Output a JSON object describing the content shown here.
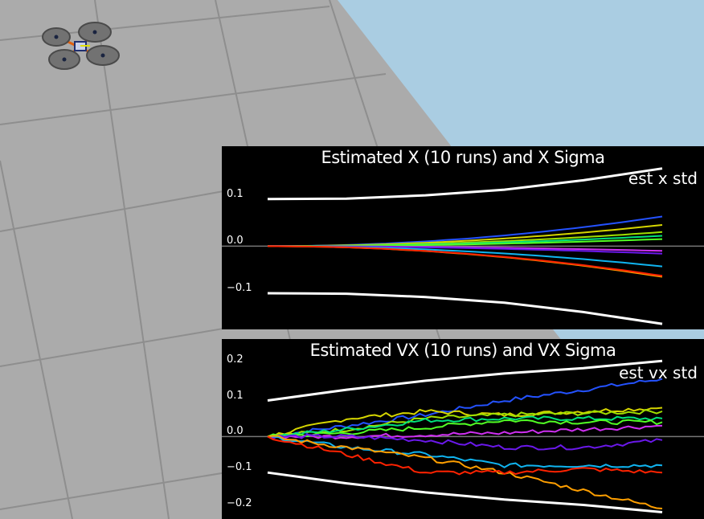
{
  "colors": {
    "sky": "#aacde2",
    "floor": "#ababab",
    "floor_grid": "#8e8e8e",
    "sigma": "#ffffff",
    "zero_line": "#777777",
    "run_colors": [
      "#2452ff",
      "#d5d500",
      "#9fdf00",
      "#00e27a",
      "#52ff24",
      "#cf2ff2",
      "#6a18ea",
      "#10b4f0",
      "#ff9f00",
      "#ff2200"
    ]
  },
  "drone": {
    "icon": "quadcopter-icon"
  },
  "chart_data": [
    {
      "type": "line",
      "title": "Estimated X (10 runs) and X Sigma",
      "legend": [
        "est x std"
      ],
      "legend_position": "top-right",
      "xlim": [
        0,
        1
      ],
      "ylim": [
        -0.17,
        0.185
      ],
      "ticks": [
        {
          "value": 0.1,
          "label": "0.1"
        },
        {
          "value": 0.0,
          "label": "0.0"
        },
        {
          "value": -0.1,
          "label": "−0.1"
        }
      ],
      "sigma_upper": [
        [
          0,
          0.1
        ],
        [
          0.2,
          0.101
        ],
        [
          0.4,
          0.108
        ],
        [
          0.6,
          0.12
        ],
        [
          0.8,
          0.14
        ],
        [
          1.0,
          0.165
        ]
      ],
      "sigma_lower": [
        [
          0,
          -0.1
        ],
        [
          0.2,
          -0.101
        ],
        [
          0.4,
          -0.108
        ],
        [
          0.6,
          -0.12
        ],
        [
          0.8,
          -0.14
        ],
        [
          1.0,
          -0.165
        ]
      ],
      "runs_end": [
        0.063,
        0.045,
        0.03,
        0.022,
        0.015,
        -0.01,
        -0.016,
        -0.043,
        -0.065,
        -0.063
      ]
    },
    {
      "type": "line",
      "title": "Estimated VX (10 runs) and VX Sigma",
      "legend": [
        "est vx std"
      ],
      "legend_position": "top-right",
      "xlim": [
        0,
        1
      ],
      "ylim": [
        -0.22,
        0.235
      ],
      "ticks": [
        {
          "value": 0.2,
          "label": "0.2"
        },
        {
          "value": 0.1,
          "label": "0.1"
        },
        {
          "value": 0.0,
          "label": "0.0"
        },
        {
          "value": -0.1,
          "label": "−0.1"
        },
        {
          "value": -0.2,
          "label": "−0.2"
        }
      ],
      "sigma_upper": [
        [
          0,
          0.1
        ],
        [
          0.2,
          0.13
        ],
        [
          0.4,
          0.155
        ],
        [
          0.6,
          0.175
        ],
        [
          0.8,
          0.19
        ],
        [
          1.0,
          0.21
        ]
      ],
      "sigma_lower": [
        [
          0,
          -0.1
        ],
        [
          0.2,
          -0.13
        ],
        [
          0.4,
          -0.155
        ],
        [
          0.6,
          -0.175
        ],
        [
          0.8,
          -0.19
        ],
        [
          1.0,
          -0.21
        ]
      ],
      "runs": [
        [
          [
            0,
            0
          ],
          [
            0.2,
            0.03
          ],
          [
            0.4,
            0.06
          ],
          [
            0.6,
            0.1
          ],
          [
            0.8,
            0.13
          ],
          [
            1.0,
            0.16
          ]
        ],
        [
          [
            0,
            0
          ],
          [
            0.2,
            0.05
          ],
          [
            0.4,
            0.07
          ],
          [
            0.6,
            0.06
          ],
          [
            0.8,
            0.07
          ],
          [
            1.0,
            0.08
          ]
        ],
        [
          [
            0,
            0
          ],
          [
            0.2,
            0.02
          ],
          [
            0.4,
            0.05
          ],
          [
            0.6,
            0.06
          ],
          [
            0.8,
            0.065
          ],
          [
            1.0,
            0.07
          ]
        ],
        [
          [
            0,
            0
          ],
          [
            0.2,
            0.02
          ],
          [
            0.4,
            0.045
          ],
          [
            0.6,
            0.05
          ],
          [
            0.8,
            0.05
          ],
          [
            1.0,
            0.05
          ]
        ],
        [
          [
            0,
            0
          ],
          [
            0.2,
            0.01
          ],
          [
            0.4,
            0.025
          ],
          [
            0.6,
            0.045
          ],
          [
            0.8,
            0.04
          ],
          [
            1.0,
            0.04
          ]
        ],
        [
          [
            0,
            0
          ],
          [
            0.2,
            0.0
          ],
          [
            0.4,
            0.005
          ],
          [
            0.6,
            0.01
          ],
          [
            0.8,
            0.02
          ],
          [
            1.0,
            0.03
          ]
        ],
        [
          [
            0,
            0
          ],
          [
            0.2,
            0.0
          ],
          [
            0.4,
            -0.01
          ],
          [
            0.6,
            -0.03
          ],
          [
            0.8,
            -0.03
          ],
          [
            1.0,
            -0.01
          ]
        ],
        [
          [
            0,
            0
          ],
          [
            0.2,
            -0.03
          ],
          [
            0.4,
            -0.05
          ],
          [
            0.6,
            -0.08
          ],
          [
            0.8,
            -0.08
          ],
          [
            1.0,
            -0.08
          ]
        ],
        [
          [
            0,
            0
          ],
          [
            0.2,
            -0.03
          ],
          [
            0.4,
            -0.06
          ],
          [
            0.6,
            -0.1
          ],
          [
            0.8,
            -0.15
          ],
          [
            1.0,
            -0.2
          ]
        ],
        [
          [
            0,
            0
          ],
          [
            0.2,
            -0.05
          ],
          [
            0.4,
            -0.1
          ],
          [
            0.6,
            -0.1
          ],
          [
            0.8,
            -0.09
          ],
          [
            1.0,
            -0.1
          ]
        ]
      ]
    }
  ]
}
